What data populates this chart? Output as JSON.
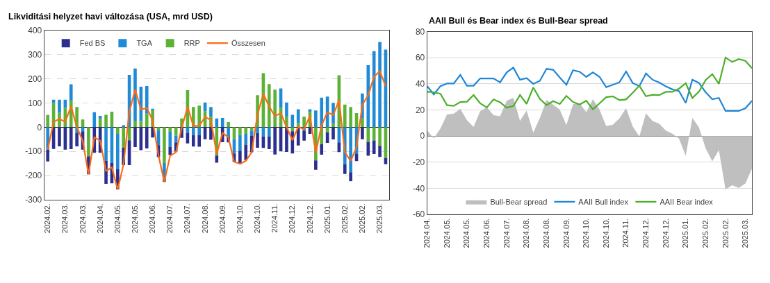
{
  "chart_data": [
    {
      "type": "bar",
      "title": "Likviditási helyzet havi változása (USA, mrd USD)",
      "stacked": true,
      "grid": "y",
      "legend": "top",
      "marker": "none",
      "categories": [
        "2024.02.",
        null,
        null,
        "2024.03.",
        null,
        null,
        "2024.03.",
        null,
        null,
        "2024.04.",
        null,
        null,
        "2024.05.",
        null,
        null,
        "2024.05.",
        null,
        null,
        "2024.06.",
        null,
        null,
        "2024.07.",
        null,
        null,
        "2024.07.",
        null,
        null,
        "2024.08.",
        null,
        null,
        "2024.09.",
        null,
        null,
        "2024.10.",
        null,
        null,
        "2024.10.",
        null,
        null,
        "2024.11.",
        null,
        null,
        "2024.12.",
        null,
        null,
        "2024.12.",
        null,
        null,
        "2025.01.",
        null,
        null,
        "2025.02.",
        null,
        null,
        "2025.02.",
        null,
        null,
        "2025.03.",
        null
      ],
      "ylim": [
        -300,
        400
      ],
      "yticks": [
        -300,
        -200,
        -100,
        0,
        100,
        200,
        300,
        400
      ],
      "series": [
        {
          "name": "RRP",
          "color": "#5db135",
          "values": [
            50,
            100,
            59,
            80,
            109,
            83,
            32,
            -120,
            0,
            34,
            51,
            64,
            -28,
            -85,
            -54,
            27,
            25,
            56,
            72,
            -12,
            -148,
            -19,
            -35,
            36,
            153,
            83,
            89,
            66,
            43,
            -117,
            0,
            21,
            -49,
            -32,
            -28,
            -15,
            132,
            223,
            178,
            155,
            80,
            43,
            -17,
            17,
            43,
            63,
            -137,
            -70,
            -21,
            14,
            214,
            93,
            83,
            58,
            36,
            -61,
            -55,
            -77,
            -128
          ]
        },
        {
          "name": "TGA",
          "color": "#1f8ad6",
          "values": [
            -93,
            13,
            54,
            33,
            68,
            -24,
            -17,
            0,
            62,
            13,
            -139,
            -148,
            -145,
            8,
            216,
            215,
            142,
            114,
            2,
            -62,
            -64,
            -62,
            -28,
            0,
            -25,
            -33,
            -32,
            36,
            40,
            36,
            38,
            -38,
            -60,
            -65,
            -44,
            -21,
            -24,
            -38,
            -39,
            0,
            80,
            59,
            51,
            57,
            -16,
            11,
            69,
            122,
            126,
            86,
            -63,
            -153,
            -186,
            -111,
            103,
            256,
            314,
            352,
            320
          ]
        },
        {
          "name": "Fed BS",
          "color": "#2b2f8f",
          "values": [
            -49,
            -90,
            -79,
            -93,
            -91,
            -55,
            -76,
            -75,
            -106,
            -106,
            -95,
            -84,
            -84,
            -72,
            -103,
            -82,
            -95,
            -88,
            -43,
            -50,
            -14,
            -34,
            -38,
            -44,
            -42,
            -47,
            -49,
            -50,
            -52,
            -30,
            -62,
            -25,
            -34,
            -55,
            -64,
            -68,
            -61,
            -48,
            -52,
            -113,
            -100,
            -102,
            -92,
            -76,
            -40,
            -28,
            -39,
            -44,
            -44,
            -51,
            -40,
            -40,
            -37,
            -29,
            -50,
            -57,
            -56,
            -46,
            -25
          ]
        },
        {
          "name": "Összesen",
          "type": "line",
          "color": "#ff6a13",
          "values": [
            -93,
            22,
            34,
            22,
            86,
            0,
            -56,
            -195,
            -42,
            -56,
            -181,
            -166,
            -258,
            -155,
            63,
            155,
            72,
            80,
            28,
            -116,
            -226,
            -118,
            -104,
            -3,
            84,
            4,
            6,
            41,
            30,
            -111,
            -24,
            -42,
            -143,
            -152,
            -139,
            -104,
            52,
            137,
            86,
            45,
            59,
            0,
            -54,
            1,
            -8,
            47,
            -106,
            8,
            61,
            50,
            111,
            -104,
            -140,
            -83,
            93,
            132,
            208,
            231,
            169
          ]
        }
      ]
    },
    {
      "type": "line",
      "title": "AAII Bull és Bear index és Bull-Bear spread",
      "grid": "y",
      "legend": "bottom",
      "marker": "none",
      "categories": [
        "2024.04.",
        null,
        null,
        "2024.05.",
        null,
        null,
        "2024.05.",
        null,
        null,
        "2024.06.",
        null,
        null,
        "2024.07.",
        null,
        null,
        "2024.08.",
        null,
        null,
        "2024.08.",
        null,
        null,
        "2024.09.",
        null,
        null,
        "2024.10.",
        null,
        null,
        "2024.10.",
        null,
        null,
        "2024.11.",
        null,
        null,
        "2024.12.",
        null,
        null,
        "2024.12.",
        null,
        null,
        "2025.01.",
        null,
        null,
        "2025.02.",
        null,
        null,
        "2025.02.",
        null,
        null,
        "2025.03.",
        null
      ],
      "ylim": [
        -60,
        80
      ],
      "yticks": [
        -60,
        -40,
        -20,
        0,
        20,
        40,
        60,
        80
      ],
      "series": [
        {
          "name": "Bull-Bear spread",
          "type": "area",
          "color": "#bfbfbf",
          "values": [
            4.4,
            -1.7,
            5.9,
            16.6,
            17.1,
            20.8,
            12.2,
            7.1,
            19.1,
            22.2,
            16.1,
            15.3,
            27.1,
            29.4,
            11.7,
            19.7,
            2.7,
            13.9,
            27.8,
            24,
            20.3,
            8.5,
            24.4,
            25.1,
            18.3,
            28.3,
            20.3,
            7.7,
            8.8,
            13.6,
            21.4,
            7.5,
            -0.3,
            17.5,
            11.5,
            9.6,
            4.2,
            1.9,
            -2,
            -15.1,
            14,
            6.6,
            -9.3,
            -19.2,
            -10.8,
            -40.9,
            -37.5,
            -39.7,
            -36.2,
            -24.8
          ]
        },
        {
          "name": "AAII Bull index",
          "color": "#1f86d6",
          "values": [
            38.3,
            31.9,
            38.3,
            40.3,
            40.3,
            46.9,
            38.6,
            38.6,
            44.2,
            44.2,
            44.2,
            41.2,
            48.8,
            52.5,
            43.2,
            44.4,
            40,
            42.4,
            51.5,
            50.8,
            44.9,
            39.3,
            50.5,
            49.3,
            45.4,
            48.8,
            45.4,
            37.5,
            39.3,
            41.2,
            49.5,
            40.7,
            38.3,
            48,
            43.2,
            41,
            38.1,
            35.8,
            34.4,
            25.4,
            43.2,
            40.7,
            33.6,
            28.3,
            29.2,
            19.3,
            19.3,
            19.3,
            21.4,
            27.1
          ]
        },
        {
          "name": "AAII Bear index",
          "color": "#4caf2a",
          "values": [
            33.9,
            33.6,
            32.4,
            23.7,
            23.2,
            26.1,
            26.4,
            31.5,
            25.1,
            22,
            28.1,
            25.9,
            21.7,
            23.1,
            31.5,
            24.7,
            37.3,
            28.5,
            23.7,
            26.8,
            24.6,
            30.8,
            26.1,
            24.2,
            27.1,
            20.5,
            25.1,
            29.8,
            30.5,
            27.6,
            28.1,
            33.2,
            38.6,
            30.5,
            31.7,
            31.4,
            33.9,
            33.9,
            36.4,
            40.5,
            29.2,
            34.1,
            42.9,
            47.5,
            40,
            60.2,
            56.8,
            59,
            57.6,
            51.9
          ]
        }
      ]
    }
  ]
}
